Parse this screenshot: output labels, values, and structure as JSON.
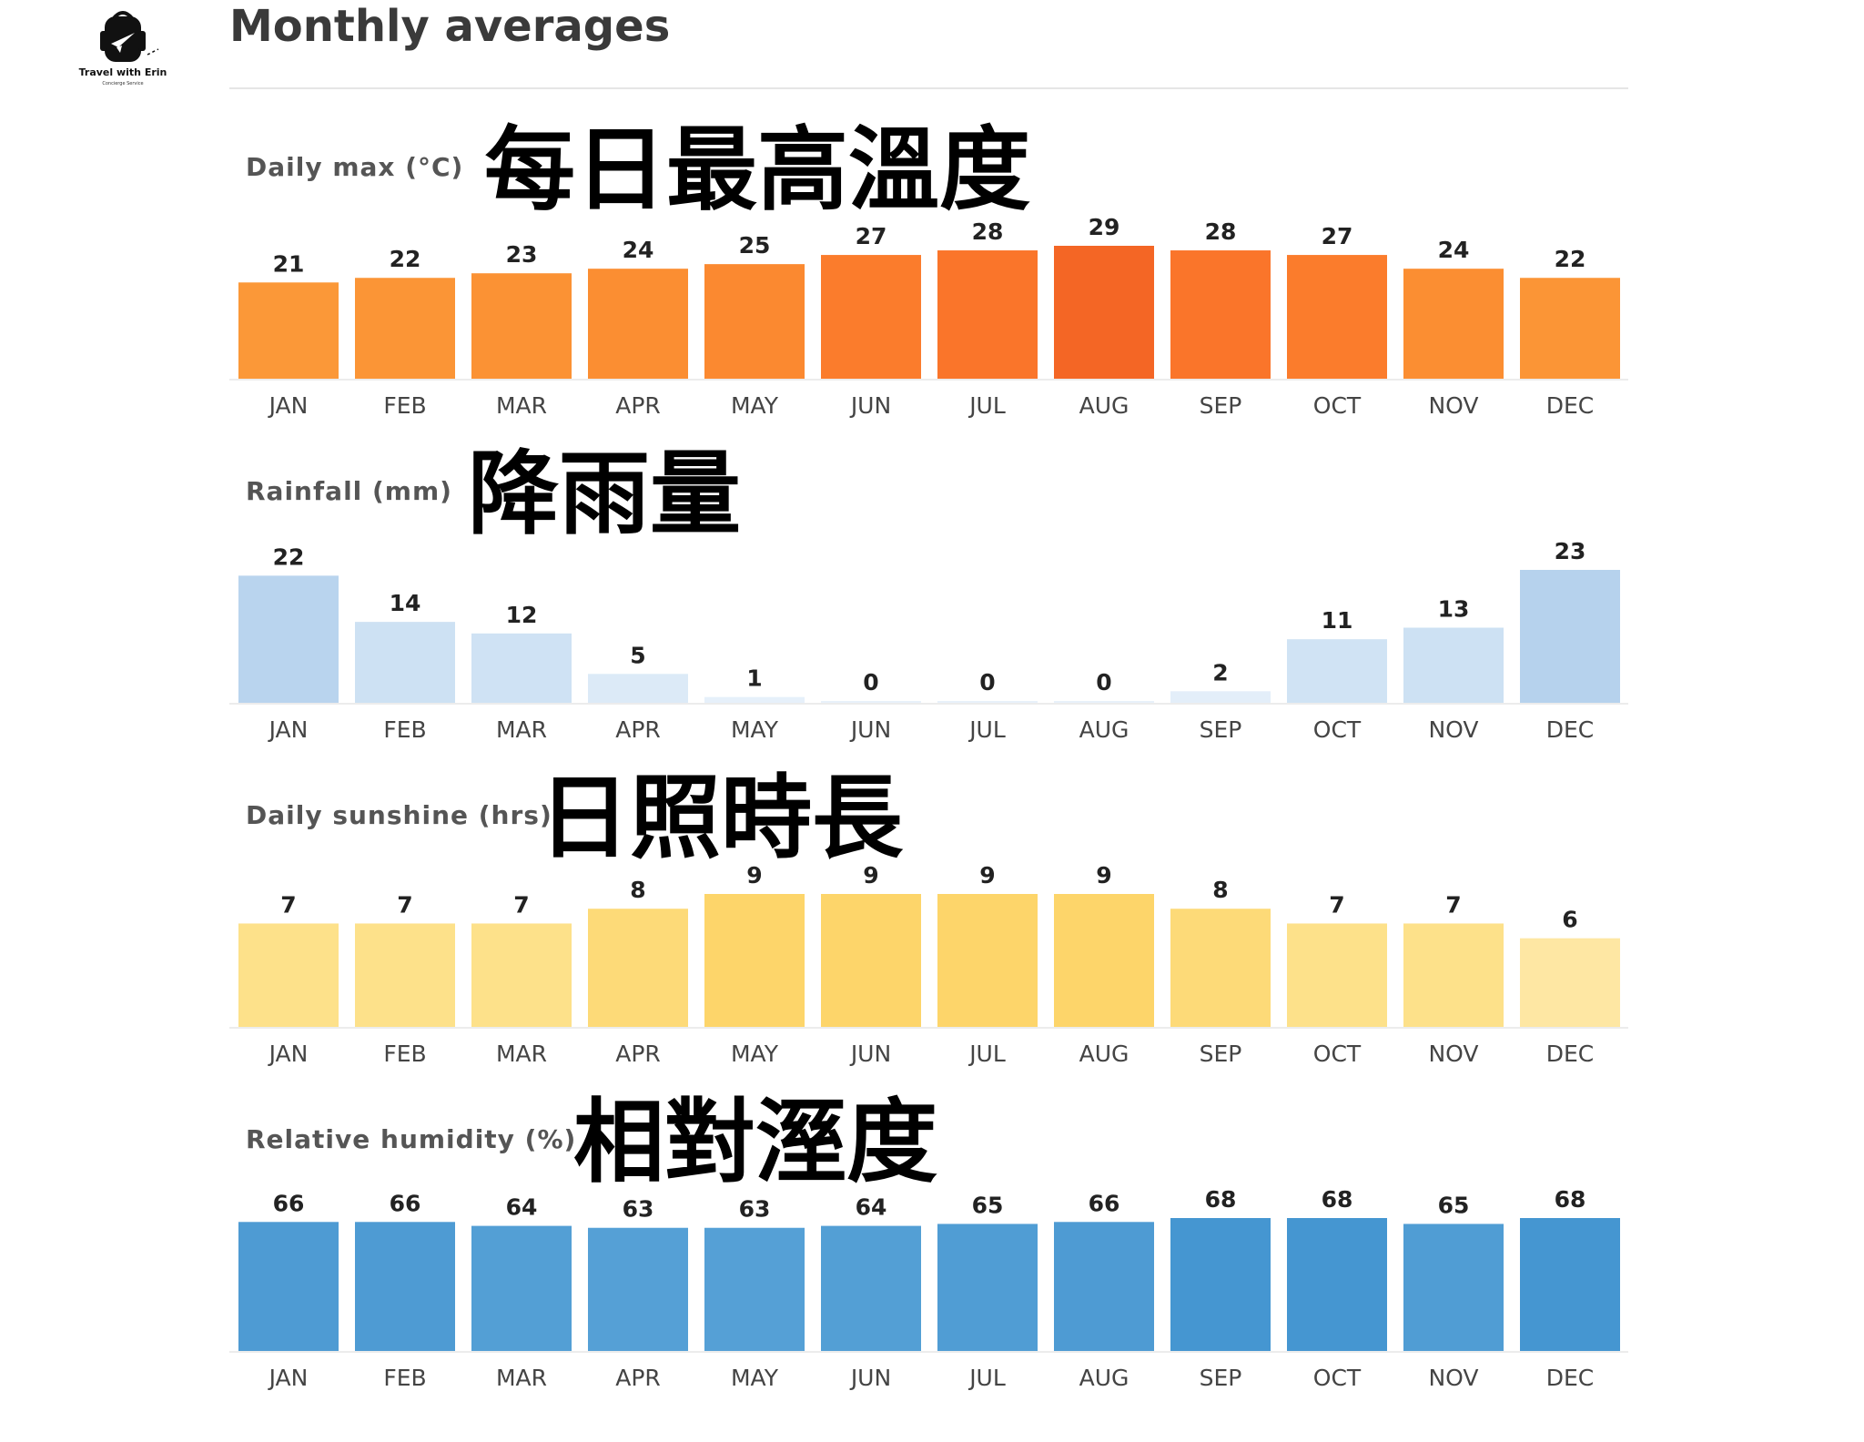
{
  "logo": {
    "name": "Travel with Erin",
    "subtitle": "Concierge Service",
    "icon": "backpack-airplane-icon"
  },
  "page_title": "Monthly averages",
  "chart_data": [
    {
      "type": "bar",
      "title": "Daily max (°C)",
      "caption": "每日最高溫度",
      "categories": [
        "JAN",
        "FEB",
        "MAR",
        "APR",
        "MAY",
        "JUN",
        "JUL",
        "AUG",
        "SEP",
        "OCT",
        "NOV",
        "DEC"
      ],
      "values": [
        21,
        22,
        23,
        24,
        25,
        27,
        28,
        29,
        28,
        27,
        24,
        22
      ],
      "ylim": [
        0,
        29
      ],
      "colors": [
        "#fb9838",
        "#fb9536",
        "#fb9234",
        "#fb8e32",
        "#fb8930",
        "#fb7c2c",
        "#fa752a",
        "#f46625",
        "#fa752a",
        "#fb7c2c",
        "#fb8e32",
        "#fb9536"
      ]
    },
    {
      "type": "bar",
      "title": "Rainfall (mm)",
      "caption": "降雨量",
      "categories": [
        "JAN",
        "FEB",
        "MAR",
        "APR",
        "MAY",
        "JUN",
        "JUL",
        "AUG",
        "SEP",
        "OCT",
        "NOV",
        "DEC"
      ],
      "values": [
        22,
        14,
        12,
        5,
        1,
        0,
        0,
        0,
        2,
        11,
        13,
        23
      ],
      "ylim": [
        0,
        23
      ],
      "colors": [
        "#b9d4ee",
        "#cde1f3",
        "#cfe2f4",
        "#dceaf7",
        "#e6f0fa",
        "#e8f1fa",
        "#e8f1fa",
        "#e8f1fa",
        "#e3eef9",
        "#d0e3f4",
        "#cde1f3",
        "#b6d2ed"
      ]
    },
    {
      "type": "bar",
      "title": "Daily sunshine (hrs)",
      "caption": "日照時長",
      "categories": [
        "JAN",
        "FEB",
        "MAR",
        "APR",
        "MAY",
        "JUN",
        "JUL",
        "AUG",
        "SEP",
        "OCT",
        "NOV",
        "DEC"
      ],
      "values": [
        7,
        7,
        7,
        8,
        9,
        9,
        9,
        9,
        8,
        7,
        7,
        6
      ],
      "ylim": [
        0,
        9
      ],
      "colors": [
        "#fde18a",
        "#fde18a",
        "#fde18a",
        "#fdda78",
        "#fdd56a",
        "#fdd56a",
        "#fdd56a",
        "#fdd56a",
        "#fdda78",
        "#fde18a",
        "#fde18a",
        "#fee7a3"
      ]
    },
    {
      "type": "bar",
      "title": "Relative humidity (%)",
      "caption": "相對溼度",
      "categories": [
        "JAN",
        "FEB",
        "MAR",
        "APR",
        "MAY",
        "JUN",
        "JUL",
        "AUG",
        "SEP",
        "OCT",
        "NOV",
        "DEC"
      ],
      "values": [
        66,
        66,
        64,
        63,
        63,
        64,
        65,
        66,
        68,
        68,
        65,
        68
      ],
      "ylim": [
        0,
        68
      ],
      "colors": [
        "#4e9bd3",
        "#4e9bd3",
        "#539fd5",
        "#55a0d6",
        "#55a0d6",
        "#539fd5",
        "#509dd4",
        "#4e9bd3",
        "#4596d1",
        "#4596d1",
        "#509dd4",
        "#4596d1"
      ]
    }
  ]
}
